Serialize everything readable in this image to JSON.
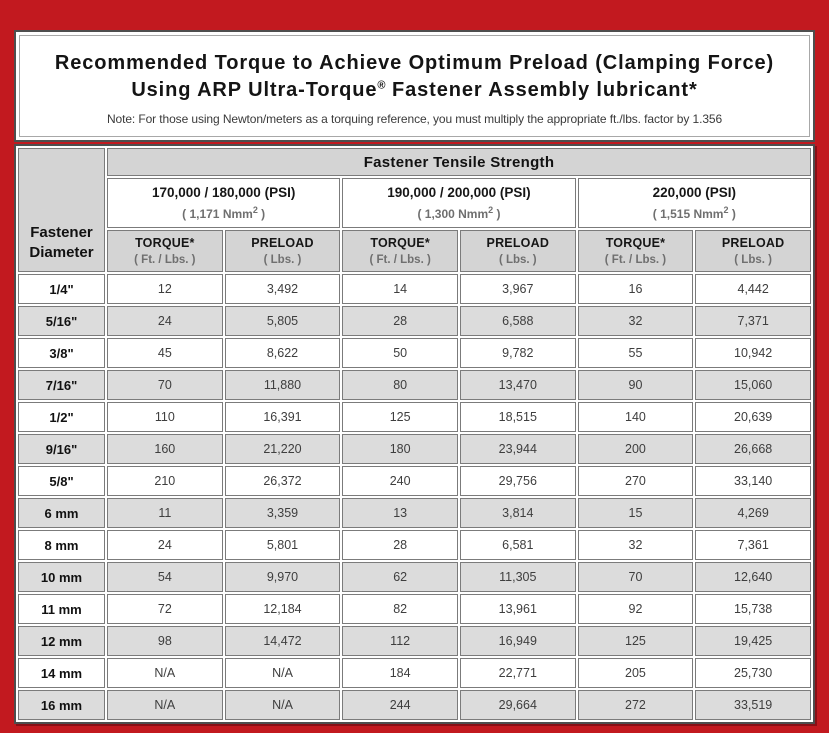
{
  "colors": {
    "page_background_red": "#c2191f",
    "panel_border_dark": "#4e4e4e",
    "panel_inner_line": "#a8a8a8",
    "cell_border": "#7b7b7b",
    "header_gray": "#d4d4d4",
    "alt_row_gray": "#dcdcdc",
    "value_text": "#3e3e3e",
    "unit_text": "#6f6f6f"
  },
  "header": {
    "title_line1": "Recommended Torque to Achieve Optimum Preload (Clamping Force)",
    "title_line2_pre": "Using ARP Ultra-Torque",
    "title_line2_sup": "®",
    "title_line2_post": " Fastener Assembly lubricant*",
    "note": "Note: For those using Newton/meters as a torquing reference, you must multiply the appropriate ft./lbs. factor by 1.356"
  },
  "table": {
    "corner_label_line1": "Fastener",
    "corner_label_line2": "Diameter",
    "group_header": "Fastener Tensile Strength",
    "psi_groups": [
      {
        "psi": "170,000 / 180,000 (PSI)",
        "nmm_pre": "( 1,171 Nmm",
        "nmm_sup": "2",
        "nmm_post": " )"
      },
      {
        "psi": "190,000 / 200,000 (PSI)",
        "nmm_pre": "( 1,300 Nmm",
        "nmm_sup": "2",
        "nmm_post": " )"
      },
      {
        "psi": "220,000 (PSI)",
        "nmm_pre": "( 1,515 Nmm",
        "nmm_sup": "2",
        "nmm_post": " )"
      }
    ],
    "columns": [
      {
        "label": "TORQUE*",
        "unit": "( Ft. / Lbs. )"
      },
      {
        "label": "PRELOAD",
        "unit": "( Lbs. )"
      },
      {
        "label": "TORQUE*",
        "unit": "( Ft. / Lbs. )"
      },
      {
        "label": "PRELOAD",
        "unit": "( Lbs. )"
      },
      {
        "label": "TORQUE*",
        "unit": "( Ft. / Lbs. )"
      },
      {
        "label": "PRELOAD",
        "unit": "( Lbs. )"
      }
    ],
    "rows": [
      {
        "diameter": "1/4\"",
        "values": [
          "12",
          "3,492",
          "14",
          "3,967",
          "16",
          "4,442"
        ]
      },
      {
        "diameter": "5/16\"",
        "values": [
          "24",
          "5,805",
          "28",
          "6,588",
          "32",
          "7,371"
        ]
      },
      {
        "diameter": "3/8\"",
        "values": [
          "45",
          "8,622",
          "50",
          "9,782",
          "55",
          "10,942"
        ]
      },
      {
        "diameter": "7/16\"",
        "values": [
          "70",
          "11,880",
          "80",
          "13,470",
          "90",
          "15,060"
        ]
      },
      {
        "diameter": "1/2\"",
        "values": [
          "110",
          "16,391",
          "125",
          "18,515",
          "140",
          "20,639"
        ]
      },
      {
        "diameter": "9/16\"",
        "values": [
          "160",
          "21,220",
          "180",
          "23,944",
          "200",
          "26,668"
        ]
      },
      {
        "diameter": "5/8\"",
        "values": [
          "210",
          "26,372",
          "240",
          "29,756",
          "270",
          "33,140"
        ]
      },
      {
        "diameter": "6 mm",
        "values": [
          "11",
          "3,359",
          "13",
          "3,814",
          "15",
          "4,269"
        ]
      },
      {
        "diameter": "8 mm",
        "values": [
          "24",
          "5,801",
          "28",
          "6,581",
          "32",
          "7,361"
        ]
      },
      {
        "diameter": "10 mm",
        "values": [
          "54",
          "9,970",
          "62",
          "11,305",
          "70",
          "12,640"
        ]
      },
      {
        "diameter": "11 mm",
        "values": [
          "72",
          "12,184",
          "82",
          "13,961",
          "92",
          "15,738"
        ]
      },
      {
        "diameter": "12 mm",
        "values": [
          "98",
          "14,472",
          "112",
          "16,949",
          "125",
          "19,425"
        ]
      },
      {
        "diameter": "14 mm",
        "values": [
          "N/A",
          "N/A",
          "184",
          "22,771",
          "205",
          "25,730"
        ]
      },
      {
        "diameter": "16 mm",
        "values": [
          "N/A",
          "N/A",
          "244",
          "29,664",
          "272",
          "33,519"
        ]
      }
    ]
  }
}
